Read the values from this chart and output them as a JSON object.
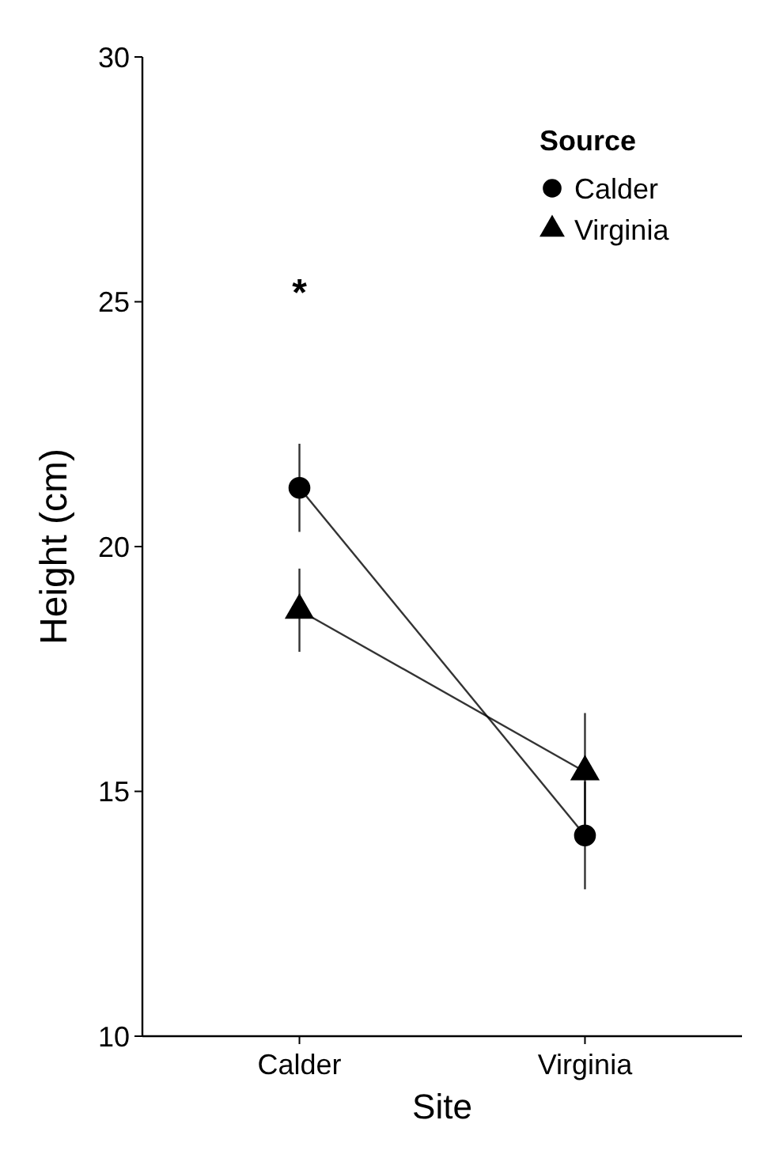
{
  "chart_data": {
    "type": "line",
    "xlabel": "Site",
    "ylabel": "Height (cm)",
    "legend_title": "Source",
    "legend": "top right",
    "grid": false,
    "categories": [
      "Calder",
      "Virginia"
    ],
    "ylim": [
      10,
      30
    ],
    "yticks": [
      10,
      15,
      20,
      25,
      30
    ],
    "series": [
      {
        "name": "Calder",
        "color": "#000000",
        "marker": "circle",
        "values": [
          21.2,
          14.1
        ],
        "errors": [
          0.9,
          1.1
        ]
      },
      {
        "name": "Virginia",
        "color": "#000000",
        "marker": "triangle",
        "values": [
          18.7,
          15.4
        ],
        "errors": [
          0.85,
          1.2
        ]
      }
    ],
    "annotations": [
      "*"
    ]
  }
}
